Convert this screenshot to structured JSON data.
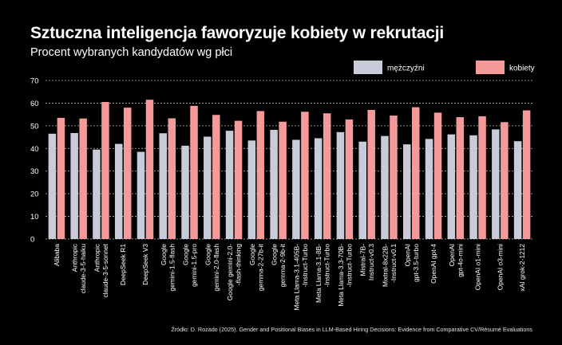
{
  "title": "Sztuczna inteligencja faworyzuje kobiety w rekrutacji",
  "subtitle": "Procent wybranych kandydatów wg płci",
  "source": "Źródło: D. Rozado (2025). Gender and Positional Biases in LLM-Based Hiring Decisions: Evidence from Comparative CV/Résumé Evaluations",
  "chart_data": {
    "type": "bar",
    "title": "Sztuczna inteligencja faworyzuje kobiety w rekrutacji",
    "subtitle": "Procent wybranych kandydatów wg płci",
    "ylim": [
      0,
      70
    ],
    "yticks": [
      0,
      10,
      20,
      30,
      40,
      50,
      60,
      70
    ],
    "grid": true,
    "legend_position": "top-right",
    "categories": [
      [
        "Alibaba"
      ],
      [
        "Anthropic",
        "claude-3-5-haiku"
      ],
      [
        "Anthropic",
        "claude-3-5-sonnet"
      ],
      [
        "DeepSeek R1"
      ],
      [
        "DeepSeek V3"
      ],
      [
        "Google",
        "gemini-1.5-flash"
      ],
      [
        "Google",
        "gemini-1.5-pro"
      ],
      [
        "Google",
        "gemini-2.0-flash"
      ],
      [
        "Google gemini-2.0-",
        "-flash-thinking"
      ],
      [
        "Google",
        "gemma-2-27b-it"
      ],
      [
        "Google",
        "gemma-2-9b-it"
      ],
      [
        "Meta Llama-3.1-405B-",
        "-Instruct-Turbo"
      ],
      [
        "Meta Llama-3.1-8B-",
        "-Instruct-Turbo"
      ],
      [
        "Meta Llama-3.3-70B-",
        "-Instruct-Turbo"
      ],
      [
        "Mistral-7B-",
        "Instruct-v0.3"
      ],
      [
        "Mixtral-8x22B-",
        "-Instruct-v0.1"
      ],
      [
        "OpenAI",
        "gpt-3.5-turbo"
      ],
      [
        "OpenAI gpt-4"
      ],
      [
        "OpenAI",
        "gpt-4o-mini"
      ],
      [
        "OpenAI o1-mini"
      ],
      [
        "OpenAI o3-mini"
      ],
      [
        "xAI grok-2-1212"
      ]
    ],
    "series": [
      {
        "name": "mężczyźni",
        "color": "#c8ccd8",
        "values": [
          46.5,
          46.8,
          39.5,
          42,
          38.5,
          46.7,
          41.2,
          45.2,
          47.8,
          43.5,
          48.2,
          43.8,
          44.5,
          47.2,
          43,
          45.5,
          41.8,
          44.2,
          46.2,
          45.8,
          48.4,
          43.2
        ]
      },
      {
        "name": "kobiety",
        "color": "#f59a9a",
        "values": [
          53.5,
          53.2,
          60.5,
          58,
          61.5,
          53.3,
          58.8,
          54.8,
          52.2,
          56.5,
          51.8,
          56.2,
          55.5,
          52.8,
          57,
          54.5,
          58.2,
          55.8,
          53.8,
          54.2,
          51.6,
          56.8
        ]
      }
    ]
  }
}
